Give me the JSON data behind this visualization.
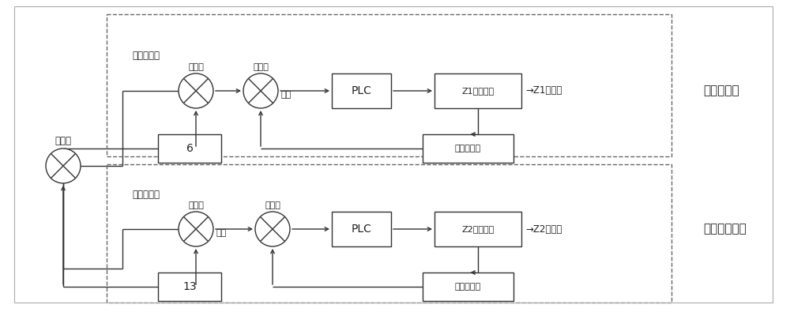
{
  "bg_color": "#ffffff",
  "lc": "#333333",
  "dc": "#555555",
  "fig_w": 10.0,
  "fig_h": 3.95,
  "top_label": "电火花加工",
  "bot_label": "超声振动加工",
  "outer_label": "比较器",
  "top_input": "设定加工量",
  "bot_input": "设定加工量",
  "top_c1_label": "比较器",
  "top_c2_label": "比较器",
  "top_c2_sub": "修正",
  "top_c3_label": "比较器",
  "bot_c1_label": "比较器",
  "bot_c1_sub": "修正",
  "bot_c2_label": "比较器",
  "top_plc": "PLC",
  "bot_plc": "PLC",
  "top_motor": "Z1直线电机",
  "bot_motor": "Z2直线电机",
  "top_out": "Z1轴位置",
  "bot_out": "Z2轴位置",
  "top_fb": "第一光栅尺",
  "bot_fb": "第二光栅尺",
  "box6": "6",
  "box13": "13"
}
